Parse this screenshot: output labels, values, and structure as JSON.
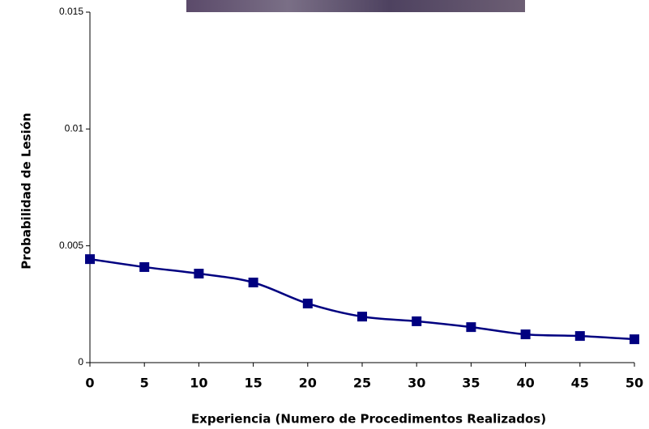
{
  "chart_data": {
    "type": "line",
    "x_label": "Experiencia (Numero de Procedimentos Realizados)",
    "y_label": "Probabilidad de Lesión",
    "x": [
      0,
      5,
      10,
      15,
      20,
      25,
      30,
      35,
      40,
      45,
      50
    ],
    "values": [
      0.00443,
      0.00409,
      0.00381,
      0.00343,
      0.00253,
      0.00197,
      0.00177,
      0.00152,
      0.00121,
      0.00114,
      0.001
    ],
    "color": "#000080",
    "xlim": [
      0,
      50
    ],
    "xticks": [
      0,
      5,
      10,
      15,
      20,
      25,
      30,
      35,
      40,
      45,
      50
    ],
    "ylim": [
      0,
      0.015
    ],
    "yticks": [
      0,
      0.005,
      0.01,
      0.015
    ]
  }
}
